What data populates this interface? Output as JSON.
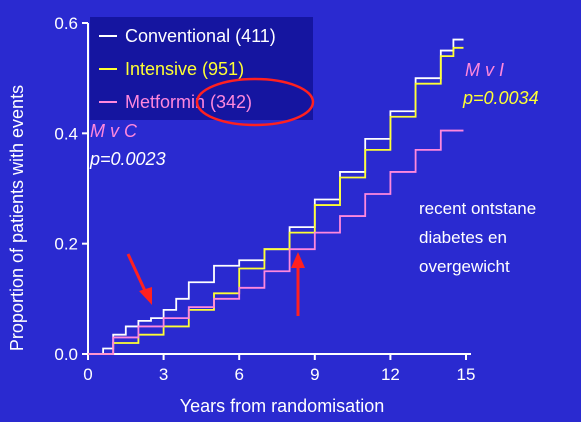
{
  "chart_data": {
    "type": "line",
    "xlabel": "Years from randomisation",
    "ylabel": "Proportion of patients with events",
    "xlim": [
      0,
      15
    ],
    "ylim": [
      0,
      0.6
    ],
    "x_ticks": [
      0,
      3,
      6,
      9,
      12,
      15
    ],
    "y_ticks": [
      "0.0",
      "0.2",
      "0.4",
      "0.6"
    ],
    "step": true,
    "grid": false,
    "legend_position": "top-left",
    "series": [
      {
        "name": "Conventional (411)",
        "color": "#ffffff",
        "points": [
          [
            0,
            0.0
          ],
          [
            0.6,
            0.01
          ],
          [
            1.0,
            0.035
          ],
          [
            1.5,
            0.05
          ],
          [
            2.0,
            0.06
          ],
          [
            2.5,
            0.065
          ],
          [
            3.0,
            0.08
          ],
          [
            3.5,
            0.1
          ],
          [
            4.0,
            0.13
          ],
          [
            5.0,
            0.16
          ],
          [
            6.0,
            0.17
          ],
          [
            7.0,
            0.19
          ],
          [
            8.0,
            0.23
          ],
          [
            9.0,
            0.28
          ],
          [
            10.0,
            0.33
          ],
          [
            11.0,
            0.39
          ],
          [
            12.0,
            0.44
          ],
          [
            13.0,
            0.5
          ],
          [
            14.0,
            0.55
          ],
          [
            14.5,
            0.57
          ],
          [
            14.9,
            0.57
          ]
        ]
      },
      {
        "name": "Intensive (951)",
        "color": "#ffff33",
        "points": [
          [
            0,
            0.0
          ],
          [
            1.0,
            0.02
          ],
          [
            2.0,
            0.035
          ],
          [
            3.0,
            0.05
          ],
          [
            4.0,
            0.08
          ],
          [
            5.0,
            0.11
          ],
          [
            6.0,
            0.155
          ],
          [
            7.0,
            0.19
          ],
          [
            8.0,
            0.22
          ],
          [
            9.0,
            0.27
          ],
          [
            10.0,
            0.32
          ],
          [
            11.0,
            0.37
          ],
          [
            12.0,
            0.43
          ],
          [
            13.0,
            0.49
          ],
          [
            14.0,
            0.54
          ],
          [
            14.5,
            0.555
          ],
          [
            14.9,
            0.555
          ]
        ]
      },
      {
        "name": "Metformin (342)",
        "color": "#ff88dd",
        "points": [
          [
            0,
            0.0
          ],
          [
            1.0,
            0.03
          ],
          [
            2.0,
            0.05
          ],
          [
            3.0,
            0.065
          ],
          [
            4.0,
            0.085
          ],
          [
            5.0,
            0.1
          ],
          [
            6.0,
            0.12
          ],
          [
            7.0,
            0.15
          ],
          [
            8.0,
            0.19
          ],
          [
            9.0,
            0.22
          ],
          [
            10.0,
            0.25
          ],
          [
            11.0,
            0.29
          ],
          [
            12.0,
            0.33
          ],
          [
            13.0,
            0.37
          ],
          [
            14.0,
            0.405
          ],
          [
            14.9,
            0.405
          ]
        ]
      }
    ],
    "annotations": {
      "mvc_label": "M v C",
      "mvc_p": "p=0.0023",
      "mvi_label": "M v I",
      "mvi_p": "p=0.0034",
      "note_lines": [
        "recent ontstane",
        "diabetes en",
        "overgewicht"
      ]
    }
  }
}
